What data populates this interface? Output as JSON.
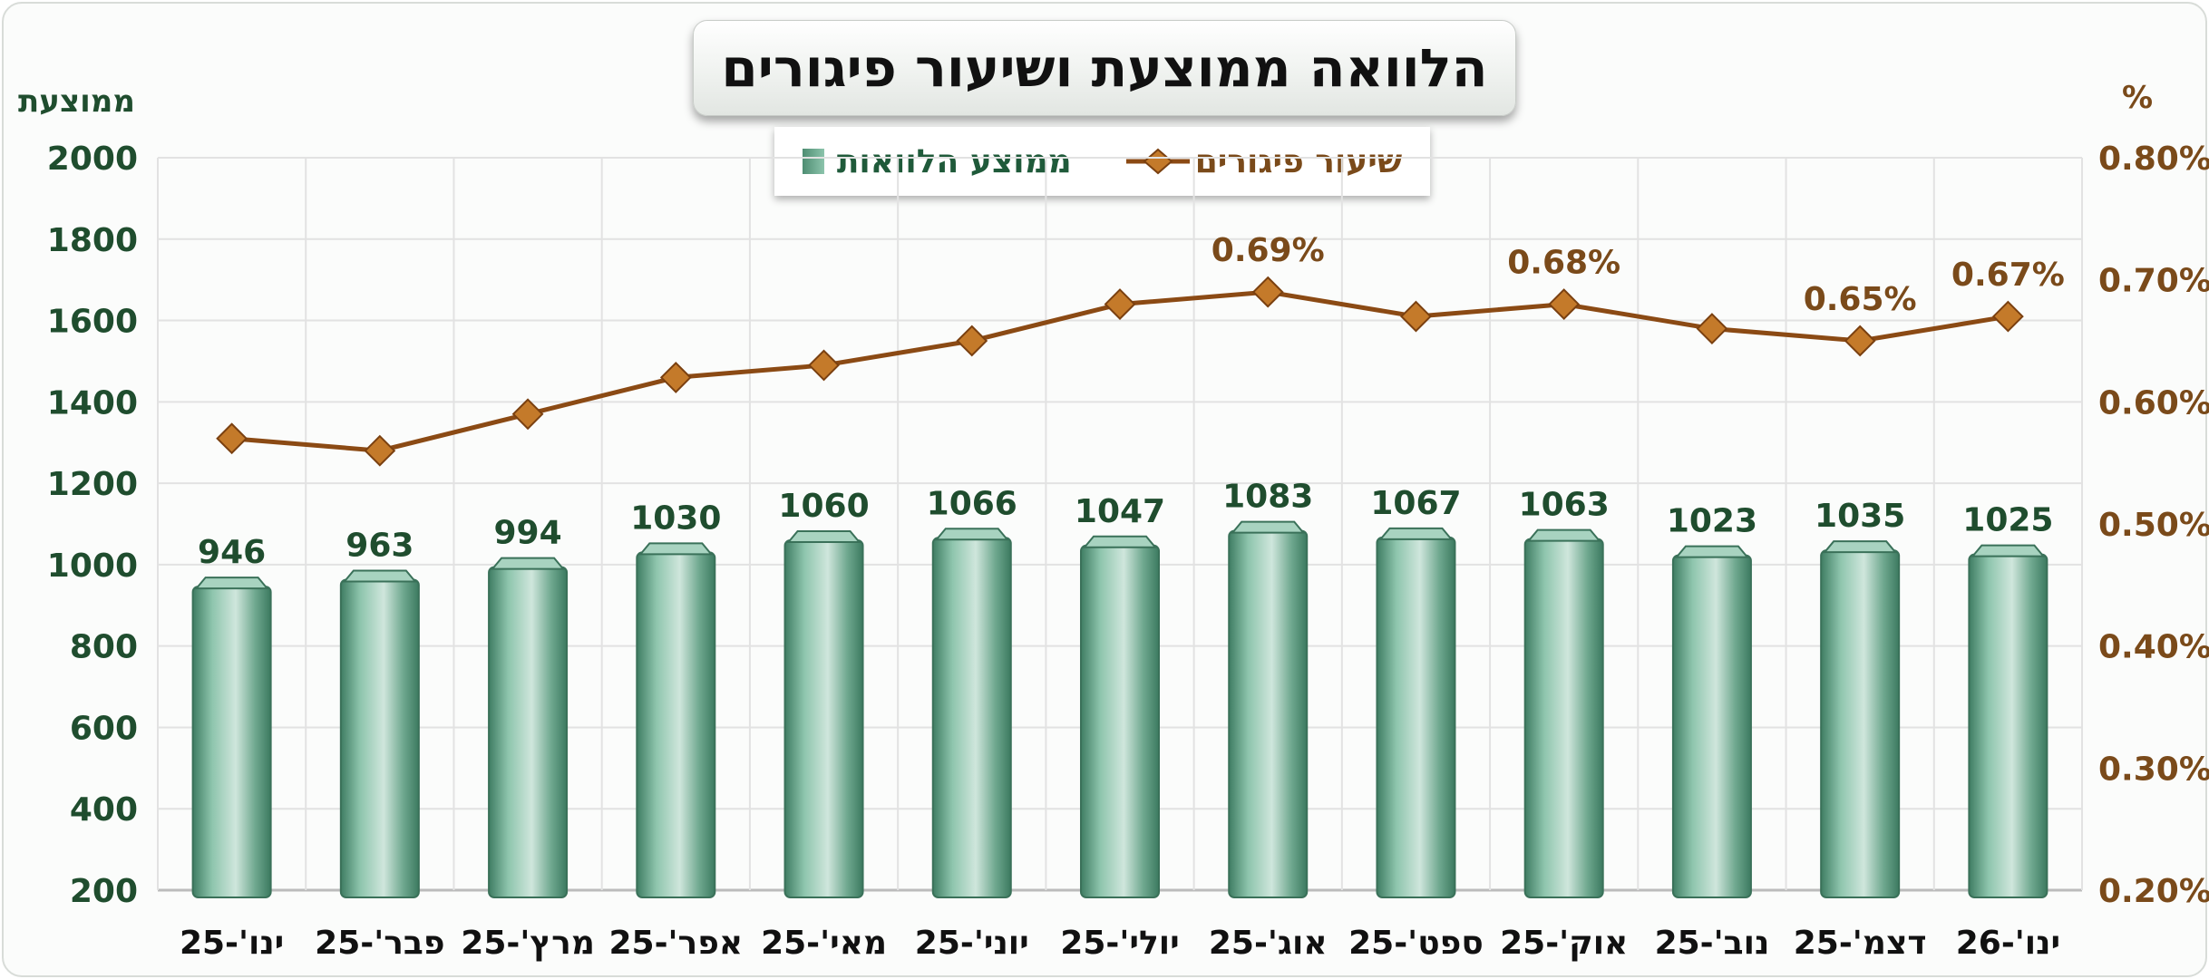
{
  "chart_data": {
    "type": "bar+line",
    "title": "הלוואה ממוצעת ושיעור פיגורים",
    "ylabel_left": "ממוצעת",
    "ylabel_right": "%",
    "categories": [
      "ינו'-25",
      "פבר'-25",
      "מרץ'-25",
      "אפר'-25",
      "מאי'-25",
      "יוני'-25",
      "יולי'-25",
      "אוג'-25",
      "ספט'-25",
      "אוק'-25",
      "נוב'-25",
      "דצמ'-25",
      "ינו'-26"
    ],
    "series": [
      {
        "name": "ממוצע הלוואות",
        "type": "bar",
        "axis": "left",
        "color": "#5f9c84",
        "values": [
          946,
          963,
          994,
          1030,
          1060,
          1066,
          1047,
          1083,
          1067,
          1063,
          1023,
          1035,
          1025
        ],
        "data_labels": [
          "946",
          "963",
          "994",
          "1030",
          "1060",
          "1066",
          "1047",
          "1083",
          "1067",
          "1063",
          "1023",
          "1035",
          "1025"
        ]
      },
      {
        "name": "שיעור פיגורים",
        "type": "line",
        "axis": "right",
        "color": "#8b4a14",
        "values": [
          0.57,
          0.56,
          0.59,
          0.62,
          0.63,
          0.65,
          0.68,
          0.69,
          0.67,
          0.68,
          0.66,
          0.65,
          0.67
        ],
        "data_labels": [
          "",
          "",
          "",
          "",
          "",
          "",
          "",
          "0.69%",
          "",
          "0.68%",
          "",
          "0.65%",
          "0.67%"
        ]
      }
    ],
    "ylim_left": [
      200,
      2000
    ],
    "yticks_left": [
      "200",
      "400",
      "600",
      "800",
      "1000",
      "1200",
      "1400",
      "1600",
      "1800",
      "2000"
    ],
    "ylim_right": [
      0.2,
      0.8
    ],
    "yticks_right": [
      "0.20%",
      "0.30%",
      "0.40%",
      "0.50%",
      "0.60%",
      "0.70%",
      "0.80%"
    ],
    "grid": true,
    "legend_placement": "top-center",
    "legend": [
      "שיעור פיגורים",
      "ממוצע הלוואות"
    ]
  }
}
